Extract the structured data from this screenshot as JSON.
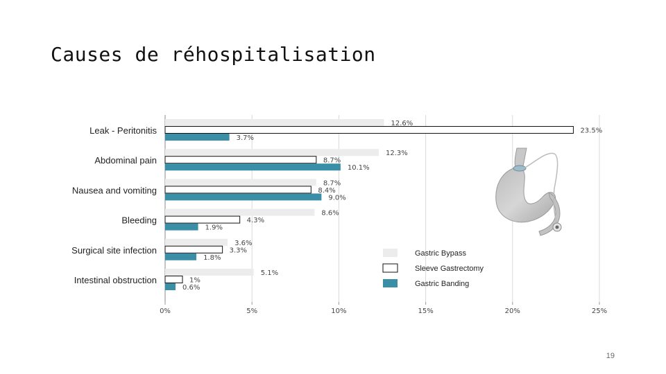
{
  "slide": {
    "title": "Causes de réhospitalisation",
    "page_number": "19"
  },
  "chart_data": {
    "type": "bar",
    "orientation": "horizontal",
    "categories": [
      "Leak - Peritonitis",
      "Abdominal pain",
      "Nausea and vomiting",
      "Bleeding",
      "Surgical site infection",
      "Intestinal obstruction"
    ],
    "series": [
      {
        "name": "Gastric Bypass",
        "values": [
          12.6,
          12.3,
          8.7,
          8.6,
          3.6,
          5.1
        ],
        "labels": [
          "12.6%",
          "12.3%",
          "8.7%",
          "8.6%",
          "3.6%",
          "5.1%"
        ],
        "color": "#ececec"
      },
      {
        "name": "Sleeve Gastrectomy",
        "values": [
          23.5,
          8.7,
          8.4,
          4.3,
          3.3,
          1
        ],
        "labels": [
          "23.5%",
          "8.7%",
          "8.4%",
          "4.3%",
          "3.3%",
          "1%"
        ],
        "color": "#ffffff"
      },
      {
        "name": "Gastric Banding",
        "values": [
          3.7,
          10.1,
          9.0,
          1.9,
          1.8,
          0.6
        ],
        "labels": [
          "3.7%",
          "10.1%",
          "9.0%",
          "1.9%",
          "1.8%",
          "0.6%"
        ],
        "color": "#3a8ea6"
      }
    ],
    "xlim": [
      0,
      25
    ],
    "xticks": [
      0,
      5,
      10,
      15,
      20,
      25
    ],
    "xtick_labels": [
      "0%",
      "5%",
      "10%",
      "15%",
      "20%",
      "25%"
    ],
    "grid": true,
    "legend": "bottom-right"
  }
}
